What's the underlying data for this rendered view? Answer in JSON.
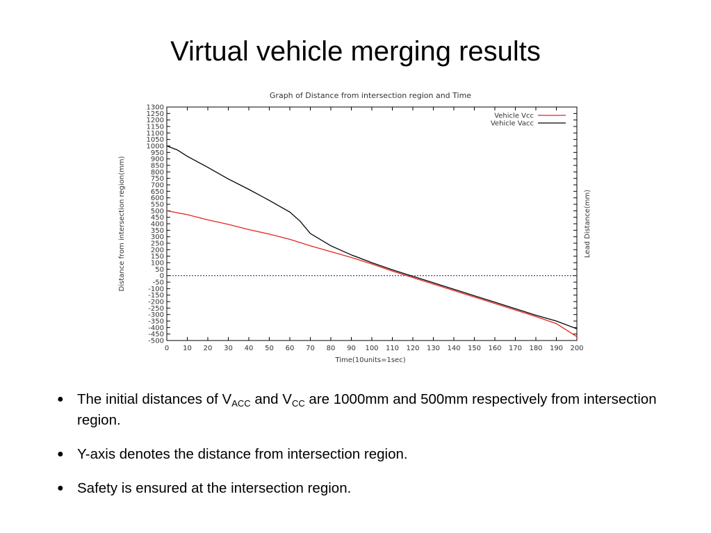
{
  "slide": {
    "title": "Virtual vehicle merging results",
    "bullets": [
      {
        "pre": "The initial distances of V",
        "sub1": "ACC",
        "mid": " and V",
        "sub2": "CC",
        "post": " are 1000mm and 500mm respectively from intersection region."
      },
      {
        "text": "Y-axis denotes the distance from intersection region."
      },
      {
        "text": "Safety is ensured at the intersection region."
      }
    ],
    "bullet_glyph": "●"
  },
  "chart_data": {
    "type": "line",
    "title": "Graph of Distance from intersection region and Time",
    "xlabel": "Time(10units=1sec)",
    "ylabel": "Distance from intersection region(mm)",
    "y2label": "Lead Distance(mm)",
    "xlim": [
      0,
      200
    ],
    "ylim": [
      -500,
      1300
    ],
    "xticks": [
      0,
      10,
      20,
      30,
      40,
      50,
      60,
      70,
      80,
      90,
      100,
      110,
      120,
      130,
      140,
      150,
      160,
      170,
      180,
      190,
      200
    ],
    "yticks": [
      1300,
      1250,
      1200,
      1150,
      1100,
      1050,
      1000,
      950,
      900,
      850,
      800,
      750,
      700,
      650,
      600,
      550,
      500,
      450,
      400,
      350,
      300,
      250,
      200,
      150,
      100,
      50,
      0,
      -50,
      -100,
      -150,
      -200,
      -250,
      -300,
      -350,
      -400,
      -450,
      -500
    ],
    "reference_line": {
      "y": 0,
      "color": "#1f2fa0",
      "style": "dotted"
    },
    "legend_position": "top-right",
    "grid": false,
    "series": [
      {
        "name": "Vehicle Vcc",
        "color": "#e8231c",
        "x": [
          0,
          10,
          20,
          30,
          40,
          50,
          60,
          70,
          80,
          90,
          100,
          110,
          120,
          130,
          140,
          150,
          160,
          170,
          180,
          190,
          200
        ],
        "y": [
          500,
          470,
          430,
          395,
          355,
          320,
          280,
          230,
          185,
          140,
          90,
          35,
          -15,
          -65,
          -115,
          -165,
          -215,
          -265,
          -315,
          -370,
          -470
        ]
      },
      {
        "name": "Vehicle Vacc",
        "color": "#000000",
        "x": [
          0,
          5,
          10,
          20,
          30,
          40,
          50,
          60,
          65,
          70,
          80,
          90,
          100,
          110,
          120,
          130,
          140,
          150,
          160,
          170,
          180,
          190,
          200
        ],
        "y": [
          1000,
          970,
          920,
          835,
          745,
          665,
          580,
          490,
          420,
          325,
          230,
          160,
          100,
          45,
          -5,
          -55,
          -105,
          -155,
          -205,
          -255,
          -305,
          -350,
          -410
        ]
      }
    ]
  }
}
